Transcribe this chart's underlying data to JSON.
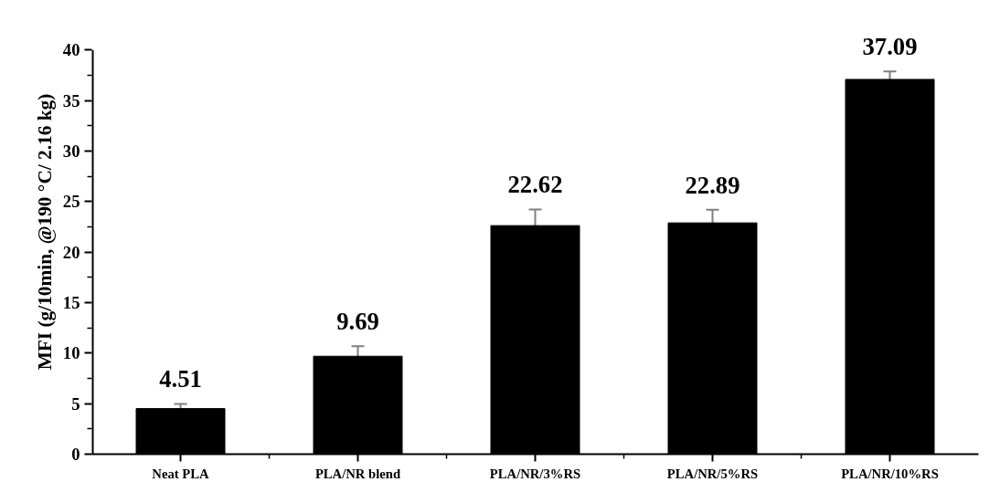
{
  "chart_data": {
    "type": "bar",
    "ylabel": "MFI (g/10min, @190 °C/ 2.16 kg)",
    "categories": [
      "Neat PLA",
      "PLA/NR blend",
      "PLA/NR/3%RS",
      "PLA/NR/5%RS",
      "PLA/NR/10%RS"
    ],
    "values": [
      4.51,
      9.69,
      22.62,
      22.89,
      37.09
    ],
    "errors": [
      0.47,
      1.0,
      1.6,
      1.3,
      0.8
    ],
    "color": "#000000",
    "data_labels": true,
    "ylim": [
      0,
      40
    ],
    "yticks": [
      0,
      5,
      10,
      15,
      20,
      25,
      30,
      35,
      40
    ],
    "grid": false
  }
}
